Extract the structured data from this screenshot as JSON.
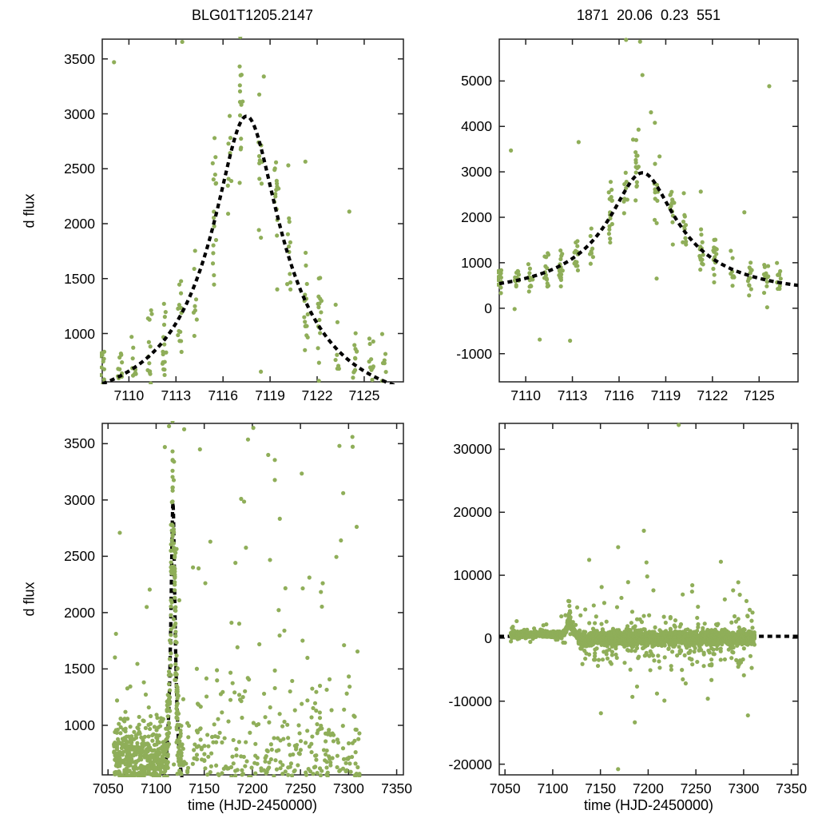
{
  "chart_data": {
    "type": "scatter",
    "description": "Microlensing difference-flux light curve, 2x2 panels: event zoom (top row) and full season (bottom row), data points with dashed model fit",
    "titles": {
      "left": "BLG01T1205.2147",
      "right": "1871  20.06  0.23  551"
    },
    "axis_labels": {
      "x": "time (HJD-2450000)",
      "y": "d flux"
    },
    "colors": {
      "point": "#8fae59",
      "model": "#000000",
      "axis": "#222222",
      "text": "#000000",
      "background": "#ffffff"
    },
    "marker": {
      "shape": "circle",
      "radius_px": 2.6
    },
    "model_curve": {
      "type": "paczynski",
      "style": "dashed",
      "t0": 7117.5,
      "tE": 9.0,
      "u0": 0.23,
      "fs": 780,
      "fb": -480,
      "peak_flux": 2980,
      "edge_flux": 600
    },
    "panels": [
      {
        "id": "top-left",
        "title": "BLG01T1205.2147",
        "xlim": [
          7108.3,
          7127.5
        ],
        "ylim": [
          560,
          3680
        ],
        "xticks": [
          7110,
          7113,
          7116,
          7119,
          7122,
          7125
        ],
        "yticks": [
          1000,
          1500,
          2000,
          2500,
          3000,
          3500
        ],
        "ylabel": "d flux",
        "datasets": [
          "event_season"
        ]
      },
      {
        "id": "top-right",
        "title": "1871  20.06  0.23  551",
        "xlim": [
          7108.3,
          7127.5
        ],
        "ylim": [
          -1620,
          5920
        ],
        "xticks": [
          7110,
          7113,
          7116,
          7119,
          7122,
          7125
        ],
        "yticks": [
          -1000,
          0,
          1000,
          2000,
          3000,
          4000,
          5000
        ],
        "datasets": [
          "event_season"
        ]
      },
      {
        "id": "bottom-left",
        "xlim": [
          7044,
          7357
        ],
        "ylim": [
          560,
          3680
        ],
        "xticks": [
          7050,
          7100,
          7150,
          7200,
          7250,
          7300,
          7350
        ],
        "yticks": [
          1000,
          1500,
          2000,
          2500,
          3000,
          3500
        ],
        "ylabel": "d flux",
        "xlabel": "time (HJD-2450000)",
        "datasets": [
          "event_season",
          "baseline_season"
        ]
      },
      {
        "id": "bottom-right",
        "xlim": [
          7044,
          7357
        ],
        "ylim": [
          -21690,
          34100
        ],
        "xticks": [
          7050,
          7100,
          7150,
          7200,
          7250,
          7300,
          7350
        ],
        "yticks": [
          -20000,
          -10000,
          0,
          10000,
          20000,
          30000
        ],
        "xlabel": "time (HJD-2450000)",
        "datasets": [
          "event_season",
          "baseline_season"
        ]
      }
    ],
    "scatter_generation": {
      "seed": 1871,
      "event_season": {
        "night_start": 7056,
        "night_end": 7126,
        "phase": 0.3,
        "night_jitter": 0.3,
        "intra_night_spread": 0.28,
        "points_per_night_min": 8,
        "points_per_night_max": 16,
        "mode": "model",
        "floor_flux": 620,
        "sd_base": 200,
        "sd_scale_above_baseline": 0.08,
        "outlier_prob": 0.05,
        "outlier_sd": 700
      },
      "baseline_season": {
        "night_start": 7127,
        "night_end": 7311,
        "phase": 0.3,
        "night_jitter": 0.3,
        "intra_night_spread": 0.28,
        "points_per_night_min": 7,
        "points_per_night_max": 13,
        "mode": "flat",
        "center": 0,
        "sd": 520,
        "tail_prob": 0.14,
        "tail_sd": 2400,
        "tail_bias": -600,
        "big_tail_prob": 0.012,
        "big_tail_sd": 6500
      },
      "extra_points": {
        "event_season": [
          [
            7116.45,
            5905
          ],
          [
            7117.35,
            5865
          ],
          [
            7117.5,
            5130
          ],
          [
            7118.05,
            4310
          ],
          [
            7118.3,
            4080
          ],
          [
            7117.25,
            3930
          ],
          [
            7125.65,
            4885
          ],
          [
            7121.25,
            2565
          ],
          [
            7109.05,
            3470
          ],
          [
            7113.4,
            3655
          ],
          [
            7117.1,
            3700
          ],
          [
            7116.9,
            3710
          ],
          [
            7110.9,
            -690
          ],
          [
            7112.85,
            -715
          ],
          [
            7118.6,
            3340
          ],
          [
            7124.05,
            2110
          ]
        ],
        "baseline_season": [
          [
            7232.0,
            33850
          ],
          [
            7195.5,
            17060
          ],
          [
            7168.5,
            -20780
          ],
          [
            7150.5,
            -11900
          ],
          [
            7186.0,
            -13350
          ],
          [
            7304.5,
            -12250
          ],
          [
            7262.5,
            -9600
          ],
          [
            7217.0,
            -9900
          ],
          [
            7199.0,
            9800
          ],
          [
            7179.0,
            8900
          ],
          [
            7205.5,
            7600
          ],
          [
            7246.0,
            7400
          ],
          [
            7289.0,
            7600
          ],
          [
            7296.0,
            6900
          ],
          [
            7154.0,
            5600
          ],
          [
            7143.0,
            5200
          ],
          [
            7172.0,
            6400
          ],
          [
            7303.0,
            5900
          ],
          [
            7290.5,
            3480
          ],
          [
            7304.0,
            3560
          ],
          [
            7216.5,
            3400
          ],
          [
            7201.0,
            3640
          ]
        ]
      }
    }
  }
}
